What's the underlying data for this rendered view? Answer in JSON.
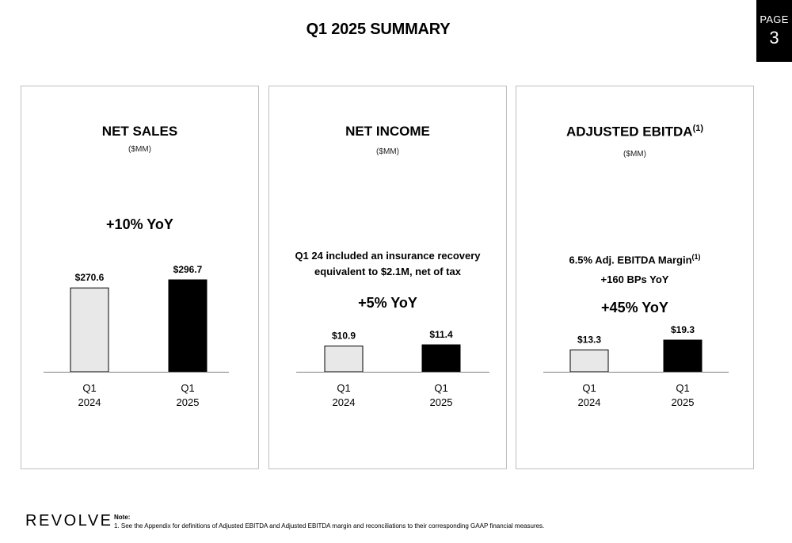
{
  "page_title": "Q1 2025 SUMMARY",
  "page_badge": {
    "label": "PAGE",
    "number": "3"
  },
  "panels": [
    {
      "title": "NET SALES",
      "title_sup": "",
      "unit": "($MM)",
      "note_lines": [],
      "growth": "+10% YoY"
    },
    {
      "title": "NET INCOME",
      "title_sup": "",
      "unit": "($MM)",
      "note_lines": [
        "Q1 24 included an insurance recovery",
        "equivalent to $2.1M, net of tax"
      ],
      "growth": "+5% YoY"
    },
    {
      "title": "ADJUSTED EBITDA",
      "title_sup": "(1)",
      "unit": "($MM)",
      "note_lines": [
        "6.5% Adj. EBITDA Margin",
        "+160 BPs YoY"
      ],
      "note_sup": "(1)",
      "growth": "+45% YoY"
    }
  ],
  "chart_data": [
    {
      "type": "bar",
      "title": "NET SALES",
      "categories": [
        "Q1\n2024",
        "Q1\n2025"
      ],
      "values": [
        270.6,
        296.7
      ],
      "data_labels": [
        "$270.6",
        "$296.7"
      ],
      "bar_colors": [
        "#e8e8e8",
        "#000000"
      ]
    },
    {
      "type": "bar",
      "title": "NET INCOME",
      "categories": [
        "Q1\n2024",
        "Q1\n2025"
      ],
      "values": [
        10.9,
        11.4
      ],
      "data_labels": [
        "$10.9",
        "$11.4"
      ],
      "bar_colors": [
        "#e8e8e8",
        "#000000"
      ]
    },
    {
      "type": "bar",
      "title": "ADJUSTED EBITDA",
      "categories": [
        "Q1\n2024",
        "Q1\n2025"
      ],
      "values": [
        13.3,
        19.3
      ],
      "data_labels": [
        "$13.3",
        "$19.3"
      ],
      "bar_colors": [
        "#e8e8e8",
        "#000000"
      ]
    }
  ],
  "footer": {
    "logo": "REVOLVE",
    "note_heading": "Note:",
    "note_text": "1. See the Appendix for definitions of Adjusted EBITDA and Adjusted EBITDA margin and reconciliations to their corresponding GAAP financial measures."
  }
}
